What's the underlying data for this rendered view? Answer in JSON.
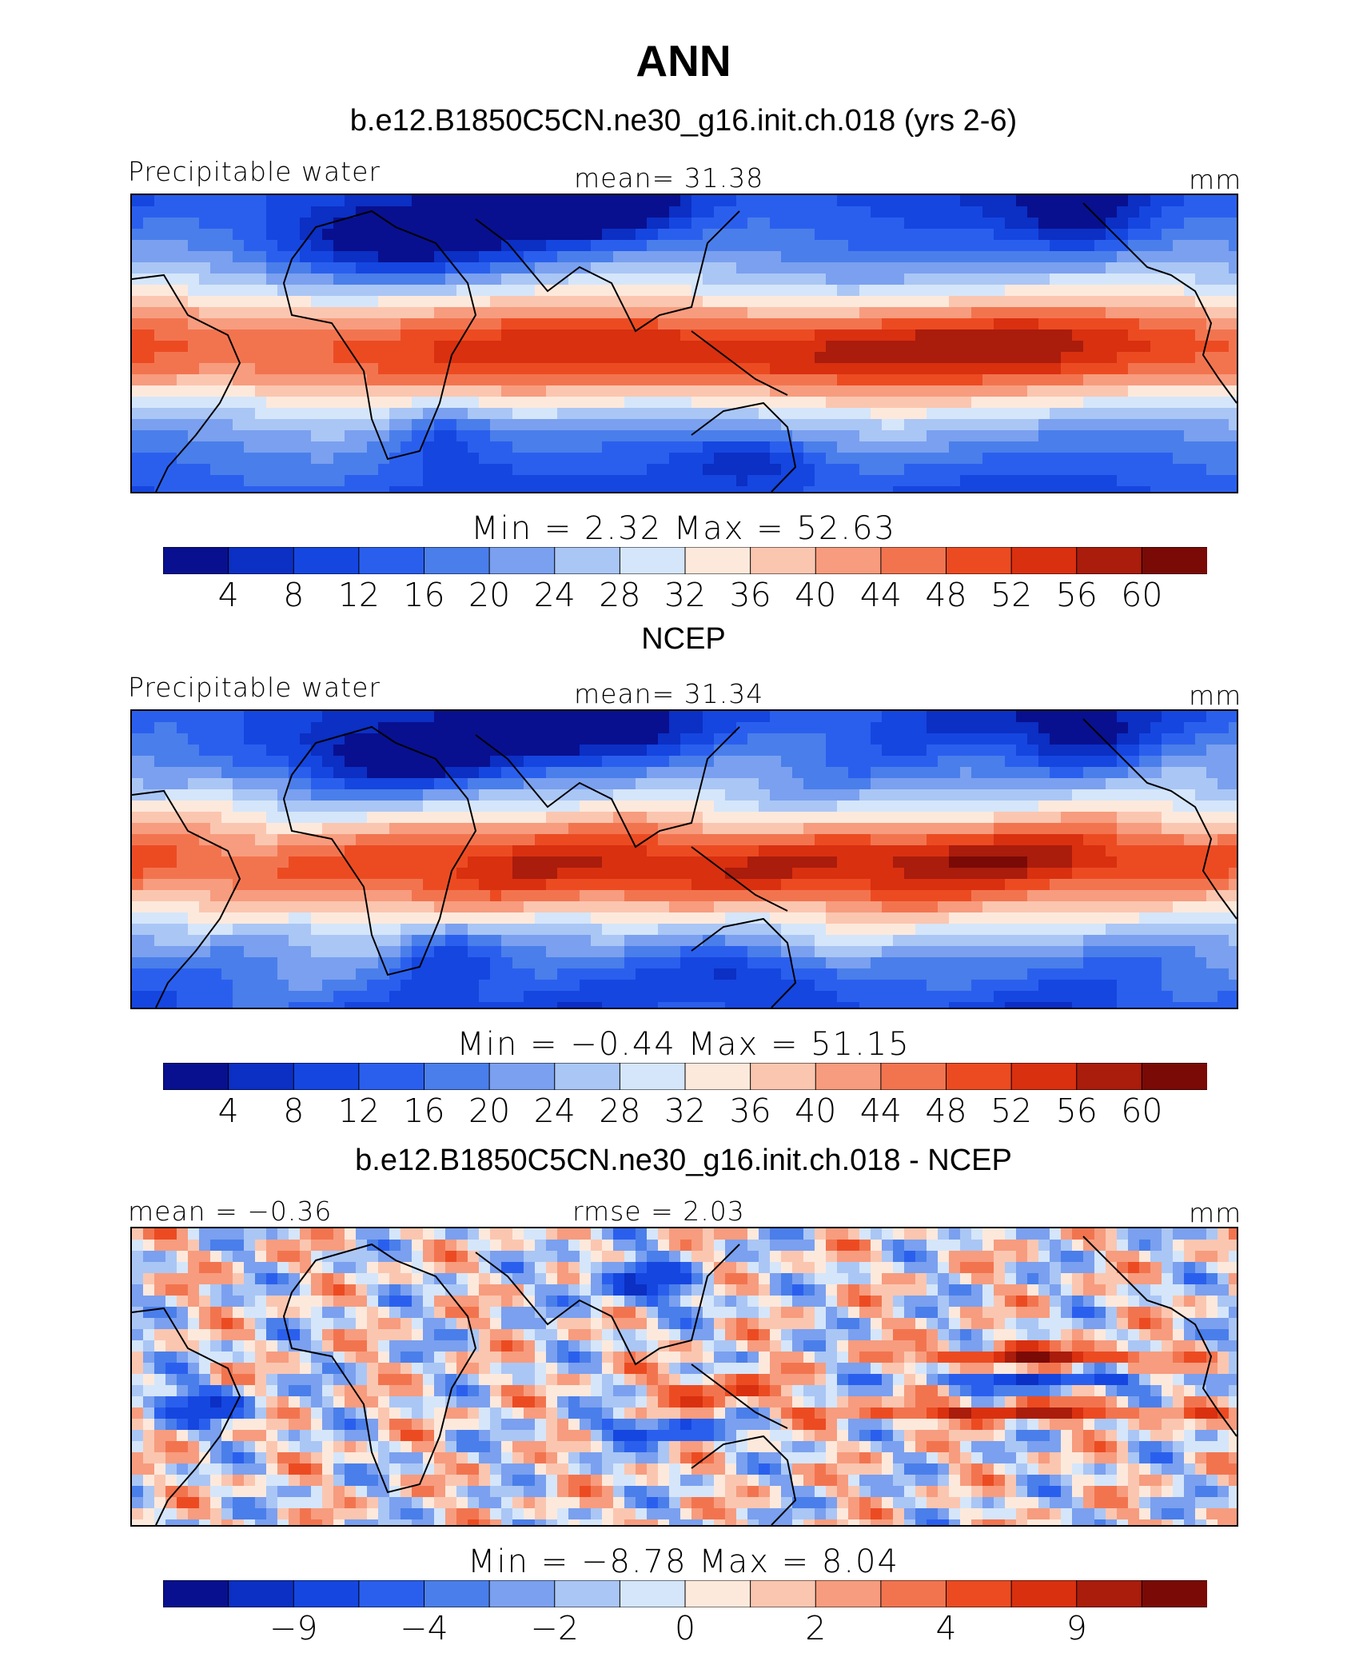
{
  "figure": {
    "title": "ANN"
  },
  "colors": {
    "palette": [
      "#08108f",
      "#0c2fc4",
      "#1546e0",
      "#2a5fee",
      "#4a7eea",
      "#7aa0ef",
      "#aac6f5",
      "#d5e6fa",
      "#fde9dc",
      "#fbc6b0",
      "#f79c7e",
      "#f2744f",
      "#ec4b22",
      "#d93010",
      "#aa1c0c",
      "#7a0a06"
    ],
    "coast": "#000000"
  },
  "chart_data": [
    {
      "type": "heatmap",
      "panel_title": "b.e12.B1850C5CN.ne30_g16.init.ch.018 (yrs 2-6)",
      "left_label": "Precipitable water",
      "center_label": "mean=   31.38",
      "right_label": "mm",
      "min_max_label": "Min =     2.32  Max =    52.63",
      "colorbar_ticks": [
        "4",
        "8",
        "12",
        "16",
        "20",
        "24",
        "28",
        "32",
        "36",
        "40",
        "44",
        "48",
        "52",
        "56",
        "60"
      ],
      "stats": {
        "mean": 31.38,
        "min": 2.32,
        "max": 52.63
      },
      "units": "mm",
      "levels": [
        4,
        8,
        12,
        16,
        20,
        24,
        28,
        32,
        36,
        40,
        44,
        48,
        52,
        56,
        60
      ]
    },
    {
      "type": "heatmap",
      "panel_title": "NCEP",
      "left_label": "Precipitable water",
      "center_label": "mean=   31.34",
      "right_label": "mm",
      "min_max_label": "Min =   −0.44  Max =    51.15",
      "colorbar_ticks": [
        "4",
        "8",
        "12",
        "16",
        "20",
        "24",
        "28",
        "32",
        "36",
        "40",
        "44",
        "48",
        "52",
        "56",
        "60"
      ],
      "stats": {
        "mean": 31.34,
        "min": -0.44,
        "max": 51.15
      },
      "units": "mm",
      "levels": [
        4,
        8,
        12,
        16,
        20,
        24,
        28,
        32,
        36,
        40,
        44,
        48,
        52,
        56,
        60
      ]
    },
    {
      "type": "heatmap",
      "panel_title": "b.e12.B1850C5CN.ne30_g16.init.ch.018 - NCEP",
      "left_label": "mean =   −0.36",
      "center_label": "rmse =     2.03",
      "right_label": "mm",
      "min_max_label": "Min =   −8.78  Max =     8.04",
      "colorbar_ticks": [
        "−9",
        "−4",
        "−2",
        "0",
        "2",
        "4",
        "9"
      ],
      "stats": {
        "mean": -0.36,
        "rmse": 2.03,
        "min": -8.78,
        "max": 8.04
      },
      "units": "mm",
      "levels": [
        -9,
        -4,
        -2,
        0,
        2,
        4,
        9
      ]
    }
  ]
}
